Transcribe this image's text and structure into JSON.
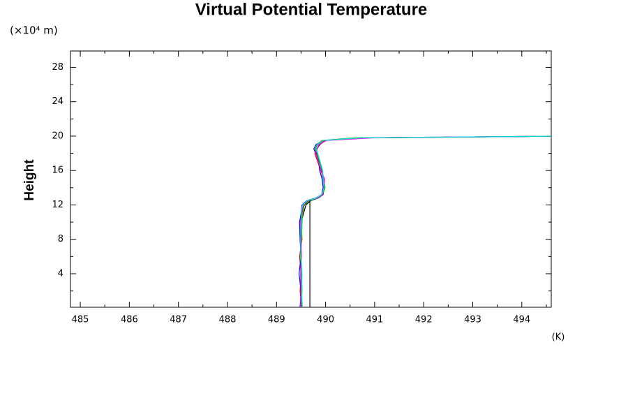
{
  "chart_data": {
    "type": "line",
    "title": "Virtual Potential Temperature",
    "y_unit": "(×10⁴ m)",
    "ylabel": "Height",
    "x_unit": "(K)",
    "xlim": [
      484.8,
      494.6
    ],
    "ylim": [
      0.1,
      29.9
    ],
    "xticks": [
      485,
      486,
      487,
      488,
      489,
      490,
      491,
      492,
      493,
      494
    ],
    "yticks": [
      4,
      8,
      12,
      16,
      20,
      24,
      28
    ],
    "xminorticks": [
      485.5,
      486.5,
      487.5,
      488.5,
      489.5,
      490.5,
      491.5,
      492.5,
      493.5,
      494.5
    ],
    "yminorticks": [
      2,
      6,
      10,
      14,
      18,
      22,
      26
    ],
    "y": [
      0,
      2,
      4,
      6,
      8,
      10,
      11,
      12,
      12.5,
      12.8,
      13.2,
      14,
      15,
      16,
      17,
      18,
      18.5,
      19,
      19.5,
      19.8,
      20
    ],
    "series": [
      {
        "color": "#000000",
        "values": [
          489.5,
          489.5,
          489.5,
          489.5,
          489.5,
          489.5,
          489.55,
          489.6,
          489.7,
          489.85,
          489.95,
          489.97,
          489.95,
          489.92,
          489.88,
          489.82,
          489.82,
          489.88,
          490.0,
          490.8,
          495.0
        ]
      },
      {
        "color": "#ff0000",
        "values": [
          489.52,
          489.48,
          489.5,
          489.47,
          489.52,
          489.5,
          489.52,
          489.55,
          489.66,
          489.82,
          489.93,
          489.98,
          489.97,
          489.9,
          489.84,
          489.78,
          489.8,
          489.84,
          489.98,
          490.9,
          495.0
        ]
      },
      {
        "color": "#0000ff",
        "values": [
          489.48,
          489.5,
          489.46,
          489.5,
          489.48,
          489.47,
          489.5,
          489.52,
          489.62,
          489.8,
          489.92,
          489.95,
          489.93,
          489.88,
          489.86,
          489.8,
          489.76,
          489.8,
          489.95,
          490.7,
          495.0
        ]
      },
      {
        "color": "#00c000",
        "values": [
          489.5,
          489.52,
          489.51,
          489.49,
          489.51,
          489.52,
          489.53,
          489.57,
          489.68,
          489.84,
          489.94,
          489.99,
          489.96,
          489.93,
          489.87,
          489.83,
          489.79,
          489.82,
          489.93,
          490.6,
          495.0
        ]
      },
      {
        "color": "#ff00ff",
        "values": [
          489.49,
          489.5,
          489.49,
          489.51,
          489.5,
          489.49,
          489.51,
          489.54,
          489.64,
          489.83,
          489.94,
          489.96,
          489.98,
          489.91,
          489.85,
          489.8,
          489.83,
          489.86,
          490.02,
          491.0,
          495.0
        ]
      },
      {
        "color": "#00e0e0",
        "values": [
          489.53,
          489.51,
          489.52,
          489.5,
          489.49,
          489.51,
          489.5,
          489.53,
          489.63,
          489.81,
          489.92,
          489.97,
          489.95,
          489.94,
          489.89,
          489.84,
          489.81,
          489.83,
          489.96,
          490.75,
          495.0
        ]
      },
      {
        "color": "#000000",
        "values": [
          489.68,
          489.68,
          489.68,
          489.68,
          489.68,
          489.68,
          489.68,
          489.68,
          489.68,
          null,
          null,
          null,
          null,
          null,
          null,
          null,
          null,
          null,
          null,
          null,
          null
        ]
      }
    ]
  }
}
